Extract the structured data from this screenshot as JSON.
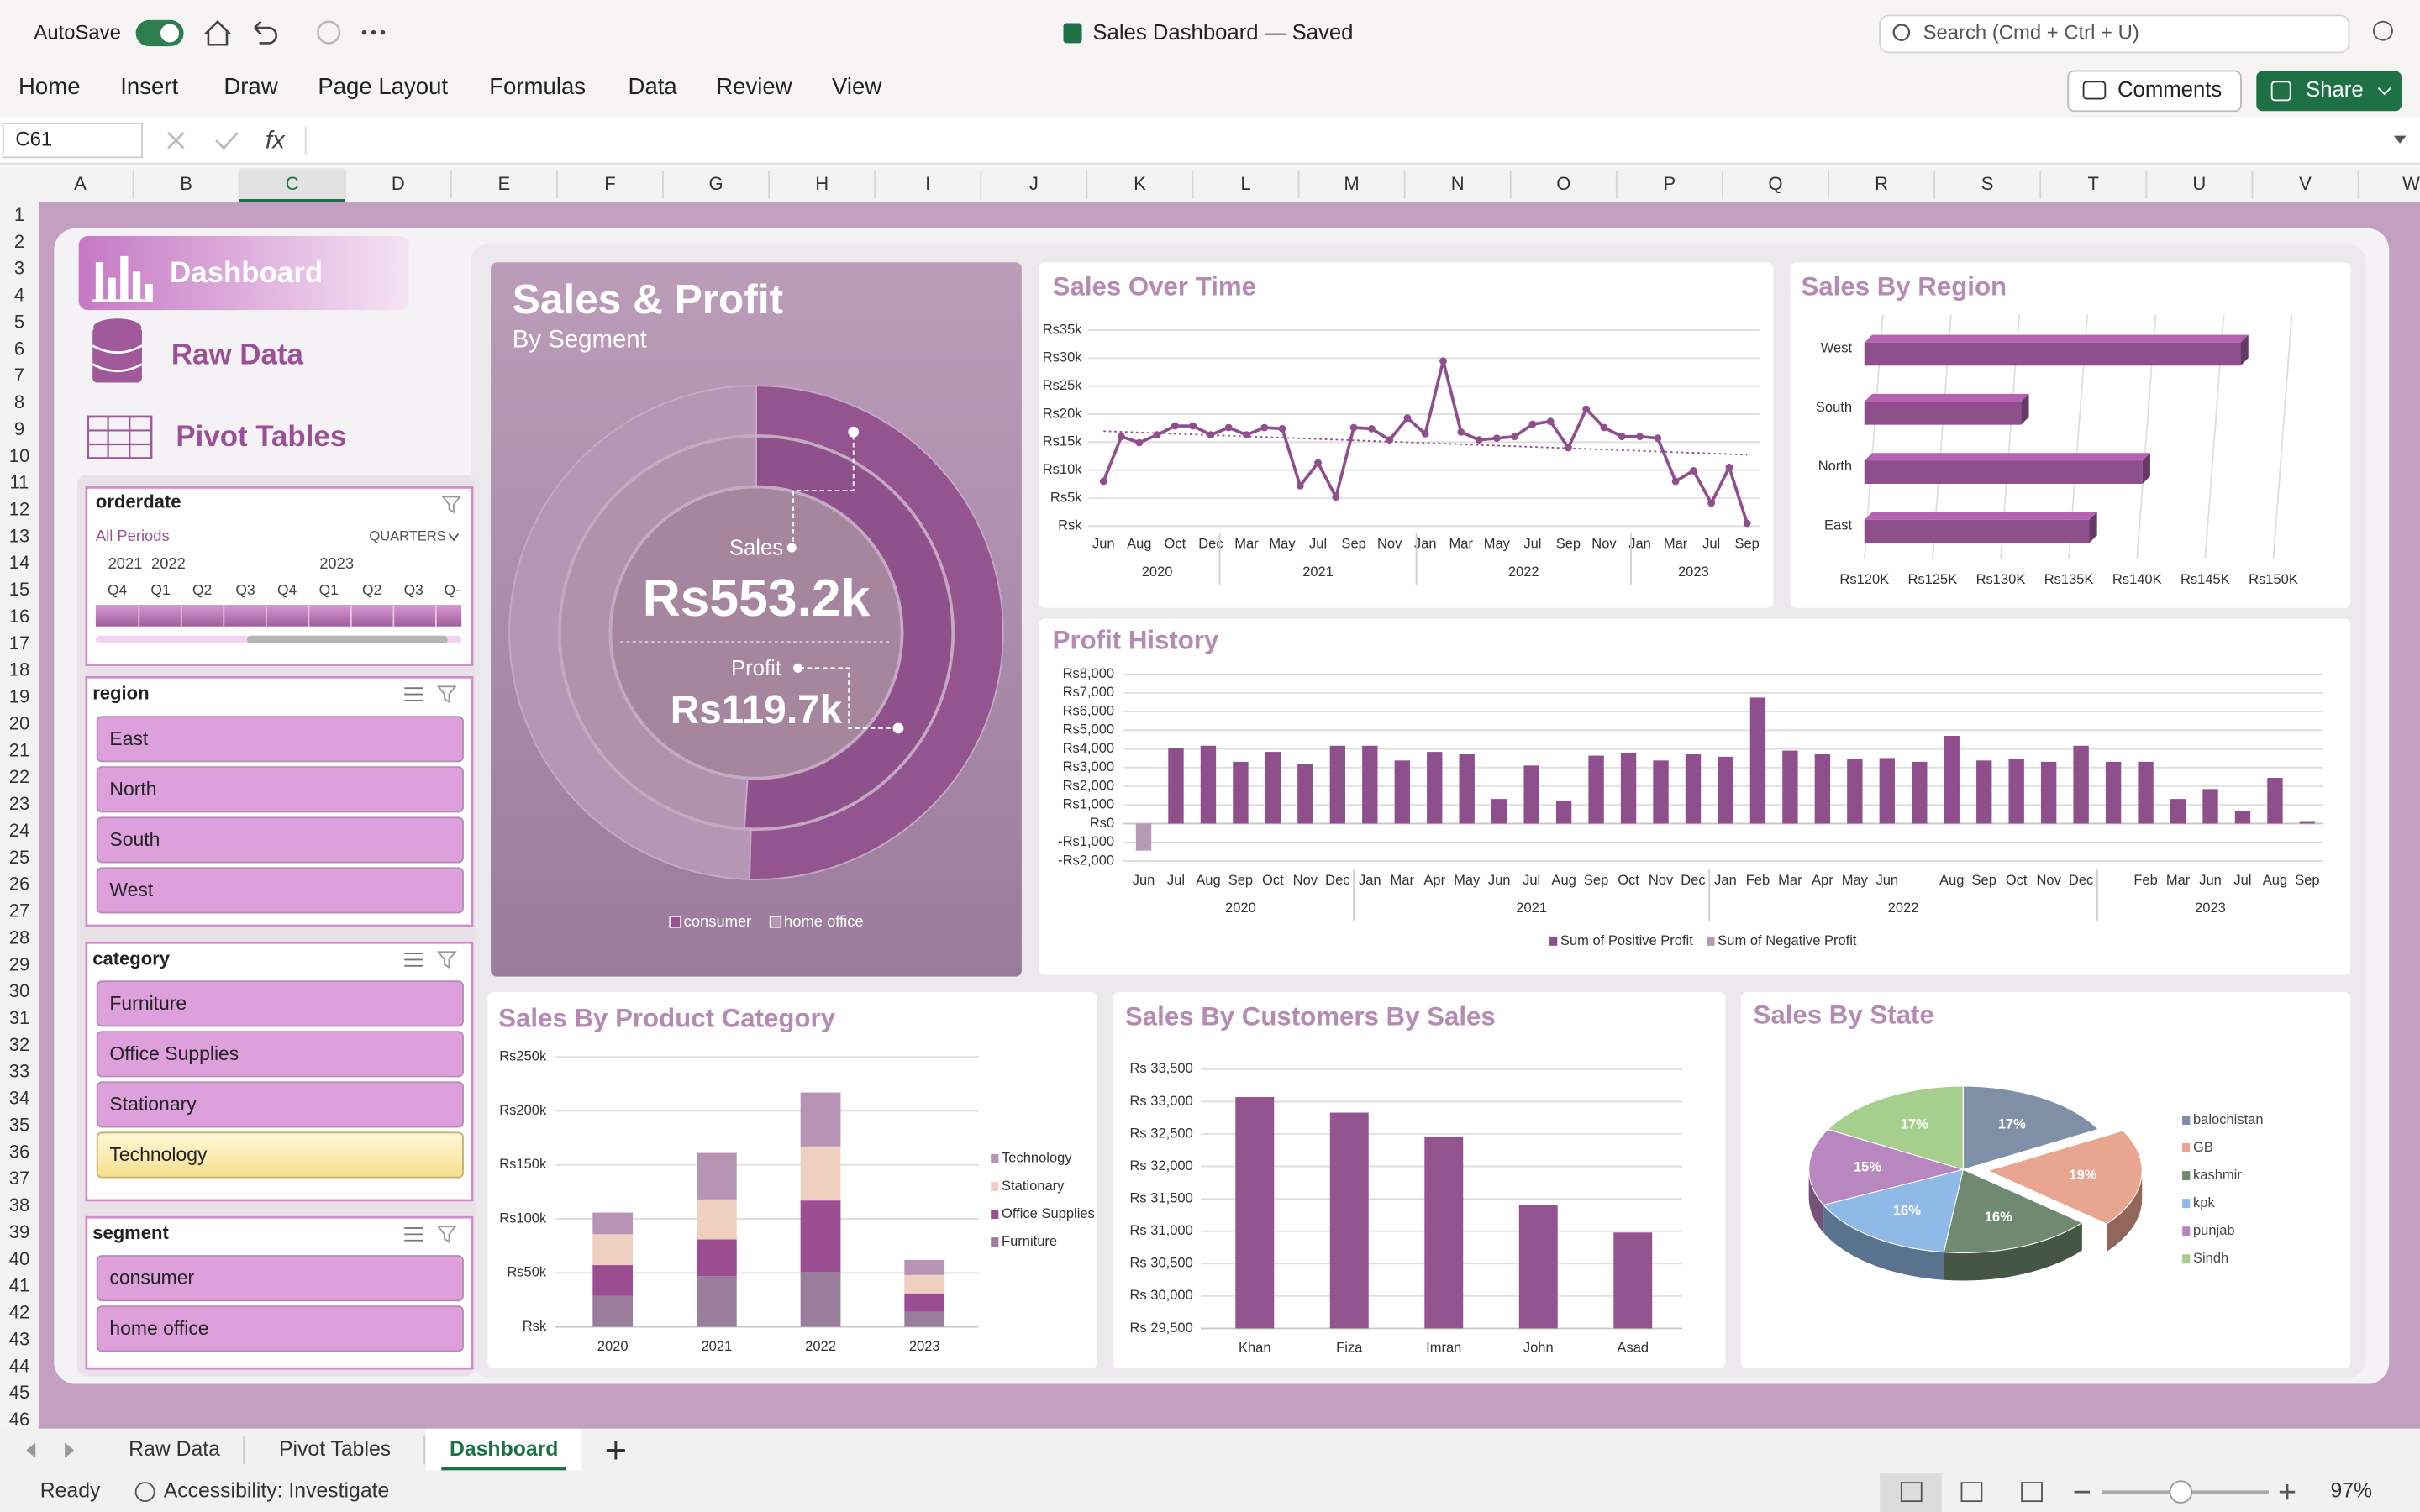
{
  "window": {
    "autosave": "AutoSave",
    "title": "Sales Dashboard — Saved",
    "search": "Search (Cmd + Ctrl + U)"
  },
  "ribbon": {
    "tabs": [
      "Home",
      "Insert",
      "Draw",
      "Page Layout",
      "Formulas",
      "Data",
      "Review",
      "View"
    ],
    "comments": "Comments",
    "share": "Share"
  },
  "formula_bar": {
    "name_box": "C61",
    "fx": "fx"
  },
  "grid": {
    "columns": [
      "A",
      "B",
      "C",
      "D",
      "E",
      "F",
      "G",
      "H",
      "I",
      "J",
      "K",
      "L",
      "M",
      "N",
      "O",
      "P",
      "Q",
      "R",
      "S",
      "T",
      "U",
      "V",
      "W"
    ],
    "rows": [
      1,
      2,
      3,
      4,
      5,
      6,
      7,
      8,
      9,
      10,
      11,
      12,
      13,
      14,
      15,
      16,
      17,
      18,
      19,
      20,
      21,
      22,
      23,
      24,
      25,
      26,
      27,
      28,
      29,
      30,
      31,
      32,
      33,
      34,
      35,
      36,
      37,
      38,
      39,
      40,
      41,
      42,
      43,
      44,
      45,
      46
    ],
    "active_column": 2
  },
  "sheets": {
    "tabs": [
      "Raw Data",
      "Pivot Tables",
      "Dashboard"
    ],
    "active": 2
  },
  "status": {
    "ready": "Ready",
    "accessibility": "Accessibility: Investigate",
    "zoom": "97%"
  },
  "nav": [
    "Dashboard",
    "Raw Data",
    "Pivot Tables"
  ],
  "slicers": {
    "orderdate": {
      "title": "orderdate",
      "periods": "All Periods",
      "level": "QUARTERS",
      "years": [
        "2021",
        "2022",
        "2023"
      ],
      "quarters": [
        "Q4",
        "Q1",
        "Q2",
        "Q3",
        "Q4",
        "Q1",
        "Q2",
        "Q3",
        "Q-"
      ]
    },
    "region": {
      "title": "region",
      "items": [
        "East",
        "North",
        "South",
        "West"
      ]
    },
    "category": {
      "title": "category",
      "items": [
        "Furniture",
        "Office Supplies",
        "Stationary",
        "Technology"
      ],
      "highlighted_index": 3
    },
    "segment": {
      "title": "segment",
      "items": [
        "consumer",
        "home office"
      ]
    }
  },
  "chart_data": [
    {
      "type": "donut",
      "title": "Sales & Profit",
      "subtitle": "By Segment",
      "categories": [
        "consumer",
        "home office"
      ],
      "colors": [
        "#93548f",
        "#b596b4"
      ],
      "series": [
        {
          "name": "Sales",
          "values": [
            279000,
            274200
          ],
          "total_label": "Rs553.2k"
        },
        {
          "name": "Profit",
          "values": [
            61000,
            58700
          ],
          "total_label": "Rs119.7k"
        }
      ]
    },
    {
      "type": "line",
      "title": "Sales Over Time",
      "color": "#8f4f8d",
      "trendline": true,
      "grid": true,
      "groups": [
        {
          "name": "2020",
          "categories": [
            "Jun",
            null,
            "Aug",
            null,
            "Oct",
            null,
            "Dec"
          ]
        },
        {
          "name": "2021",
          "categories": [
            null,
            "Mar",
            null,
            "May",
            null,
            "Jul",
            null,
            "Sep",
            null,
            "Nov",
            null
          ]
        },
        {
          "name": "2022",
          "categories": [
            "Jan",
            null,
            "Mar",
            null,
            "May",
            null,
            "Jul",
            null,
            "Sep",
            null,
            "Nov",
            null
          ]
        },
        {
          "name": "2023",
          "categories": [
            "Jan",
            null,
            "Mar",
            null,
            "Jul",
            null,
            "Sep"
          ]
        }
      ],
      "values": [
        8000,
        16000,
        14900,
        16300,
        17900,
        17900,
        16300,
        17600,
        16300,
        17600,
        17400,
        7200,
        11300,
        5200,
        17600,
        17400,
        15400,
        19300,
        16500,
        29500,
        16800,
        15400,
        15700,
        16000,
        18200,
        18700,
        14000,
        20900,
        17600,
        16000,
        16000,
        15700,
        8000,
        9900,
        4100,
        10500,
        500
      ],
      "ylim": [
        0,
        35000
      ],
      "yticks": [
        {
          "value": 0,
          "label": "Rsk"
        },
        {
          "value": 5000,
          "label": "Rs5k"
        },
        {
          "value": 10000,
          "label": "Rs10k"
        },
        {
          "value": 15000,
          "label": "Rs15k"
        },
        {
          "value": 20000,
          "label": "Rs20k"
        },
        {
          "value": 25000,
          "label": "Rs25k"
        },
        {
          "value": 30000,
          "label": "Rs30k"
        },
        {
          "value": 35000,
          "label": "Rs35k"
        }
      ]
    },
    {
      "type": "bar",
      "orientation": "horizontal",
      "title": "Sales By Region",
      "color": "#8f4f8d",
      "grid": true,
      "categories": [
        "West",
        "South",
        "North",
        "East"
      ],
      "values": [
        147600,
        131500,
        140400,
        136500
      ],
      "xlim": [
        120000,
        150000
      ],
      "xticks": [
        {
          "value": 120000,
          "label": "Rs120K"
        },
        {
          "value": 125000,
          "label": "Rs125K"
        },
        {
          "value": 130000,
          "label": "Rs130K"
        },
        {
          "value": 135000,
          "label": "Rs135K"
        },
        {
          "value": 140000,
          "label": "Rs140K"
        },
        {
          "value": 145000,
          "label": "Rs145K"
        },
        {
          "value": 150000,
          "label": "Rs150K"
        }
      ]
    },
    {
      "type": "bar",
      "title": "Profit History",
      "grid": true,
      "groups": [
        {
          "name": "2020",
          "categories": [
            "Jun",
            "Jul",
            "Aug",
            "Sep",
            "Oct",
            "Nov",
            "Dec"
          ]
        },
        {
          "name": "2021",
          "categories": [
            "Jan",
            "Mar",
            "Apr",
            "May",
            "Jun",
            "Jul",
            "Aug",
            "Sep",
            "Oct",
            "Nov",
            "Dec"
          ]
        },
        {
          "name": "2022",
          "categories": [
            "Jan",
            "Feb",
            "Mar",
            "Apr",
            "May",
            "Jun",
            null,
            "Aug",
            "Sep",
            "Oct",
            "Nov",
            "Dec"
          ]
        },
        {
          "name": "2023",
          "categories": [
            null,
            "Feb",
            "Mar",
            "Jun",
            "Jul",
            "Aug",
            "Sep"
          ]
        }
      ],
      "series": [
        {
          "name": "Sum of Positive Profit",
          "color": "#8f4f8d",
          "values": [
            0,
            4040,
            4170,
            3310,
            3840,
            3180,
            4170,
            4170,
            3380,
            3840,
            3710,
            1320,
            3110,
            1190,
            3640,
            3770,
            3380,
            3710,
            3580,
            6750,
            3910,
            3710,
            3440,
            3510,
            3310,
            4700,
            3380,
            3440,
            3310,
            4170,
            3310,
            3310,
            1320,
            1850,
            660,
            2450,
            130
          ]
        },
        {
          "name": "Sum of Negative Profit",
          "color": "#b59ab4",
          "values": [
            -1450,
            0,
            0,
            0,
            0,
            0,
            0,
            0,
            0,
            0,
            0,
            0,
            0,
            0,
            0,
            0,
            0,
            0,
            0,
            0,
            0,
            0,
            0,
            0,
            0,
            0,
            0,
            0,
            0,
            0,
            0,
            0,
            0,
            0,
            0,
            0,
            0
          ]
        }
      ],
      "ylim": [
        -2000,
        8000
      ],
      "yticks": [
        {
          "value": -2000,
          "label": "-Rs2,000"
        },
        {
          "value": -1000,
          "label": "-Rs1,000"
        },
        {
          "value": 0,
          "label": "Rs0"
        },
        {
          "value": 1000,
          "label": "Rs1,000"
        },
        {
          "value": 2000,
          "label": "Rs2,000"
        },
        {
          "value": 3000,
          "label": "Rs3,000"
        },
        {
          "value": 4000,
          "label": "Rs4,000"
        },
        {
          "value": 5000,
          "label": "Rs5,000"
        },
        {
          "value": 6000,
          "label": "Rs6,000"
        },
        {
          "value": 7000,
          "label": "Rs7,000"
        },
        {
          "value": 8000,
          "label": "Rs8,000"
        }
      ]
    },
    {
      "type": "bar",
      "stacked": true,
      "title": "Sales By Product Category",
      "grid": true,
      "categories": [
        "2020",
        "2021",
        "2022",
        "2023"
      ],
      "series": [
        {
          "name": "Technology",
          "color": "#b894b4",
          "values": [
            20000,
            43000,
            50000,
            14000
          ]
        },
        {
          "name": "Stationary",
          "color": "#efcfc0",
          "values": [
            28600,
            37000,
            50000,
            17000
          ]
        },
        {
          "name": "Office Supplies",
          "color": "#9b4e92",
          "values": [
            28600,
            34000,
            66000,
            17000
          ]
        },
        {
          "name": "Furniture",
          "color": "#9a7d9b",
          "values": [
            28600,
            47000,
            51000,
            14000
          ]
        }
      ],
      "ylim": [
        0,
        250000
      ],
      "yticks": [
        {
          "value": 0,
          "label": "Rsk"
        },
        {
          "value": 50000,
          "label": "Rs50k"
        },
        {
          "value": 100000,
          "label": "Rs100k"
        },
        {
          "value": 150000,
          "label": "Rs150k"
        },
        {
          "value": 200000,
          "label": "Rs200k"
        },
        {
          "value": 250000,
          "label": "Rs250k"
        }
      ]
    },
    {
      "type": "bar",
      "title": "Sales By Customers By Sales",
      "color": "#93548f",
      "grid": true,
      "categories": [
        "Khan",
        "Fiza",
        "Imran",
        "John",
        "Asad"
      ],
      "values": [
        33070,
        32830,
        32450,
        31400,
        30980
      ],
      "ylim": [
        29500,
        33500
      ],
      "yticks": [
        {
          "value": 29500,
          "label": "Rs 29,500"
        },
        {
          "value": 30000,
          "label": "Rs 30,000"
        },
        {
          "value": 30500,
          "label": "Rs 30,500"
        },
        {
          "value": 31000,
          "label": "Rs 31,000"
        },
        {
          "value": 31500,
          "label": "Rs 31,500"
        },
        {
          "value": 32000,
          "label": "Rs 32,000"
        },
        {
          "value": 32500,
          "label": "Rs 32,500"
        },
        {
          "value": 33000,
          "label": "Rs 33,000"
        },
        {
          "value": 33500,
          "label": "Rs 33,500"
        }
      ]
    },
    {
      "type": "pie",
      "title": "Sales By State",
      "categories": [
        "balochistan",
        "GB",
        "kashmir",
        "kpk",
        "punjab",
        "Sindh"
      ],
      "values": [
        17,
        19,
        16,
        16,
        15,
        17
      ],
      "value_labels": [
        "17%",
        "19%",
        "16%",
        "16%",
        "15%",
        "17%"
      ],
      "colors": [
        "#7f8fa6",
        "#e8a690",
        "#6f8a70",
        "#8fb9e6",
        "#b987c0",
        "#a6cf8d"
      ],
      "exploded_index": 1
    }
  ]
}
